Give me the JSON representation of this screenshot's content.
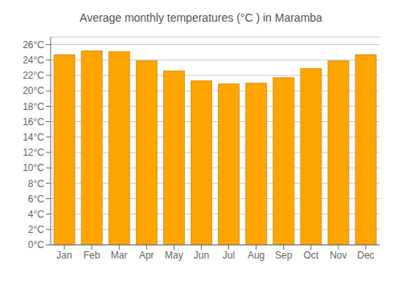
{
  "chart_data": {
    "type": "bar",
    "title": "Average monthly temperatures (°C ) in Maramba",
    "categories": [
      "Jan",
      "Feb",
      "Mar",
      "Apr",
      "May",
      "Jun",
      "Jul",
      "Aug",
      "Sep",
      "Oct",
      "Nov",
      "Dec"
    ],
    "values": [
      24.7,
      25.2,
      25.1,
      23.9,
      22.6,
      21.3,
      20.9,
      21.0,
      21.7,
      22.9,
      23.9,
      24.7
    ],
    "color": "#FFA500",
    "ylim": [
      0,
      27
    ],
    "yticks": [
      {
        "value": 0,
        "label": "0°C"
      },
      {
        "value": 2,
        "label": "2°C"
      },
      {
        "value": 4,
        "label": "4°C"
      },
      {
        "value": 6,
        "label": "6°C"
      },
      {
        "value": 8,
        "label": "8°C"
      },
      {
        "value": 10,
        "label": "10°C"
      },
      {
        "value": 12,
        "label": "12°C"
      },
      {
        "value": 14,
        "label": "14°C"
      },
      {
        "value": 16,
        "label": "16°C"
      },
      {
        "value": 18,
        "label": "18°C"
      },
      {
        "value": 20,
        "label": "20°C"
      },
      {
        "value": 22,
        "label": "22°C"
      },
      {
        "value": 24,
        "label": "24°C"
      },
      {
        "value": 26,
        "label": "26°C"
      }
    ],
    "grid": true
  }
}
